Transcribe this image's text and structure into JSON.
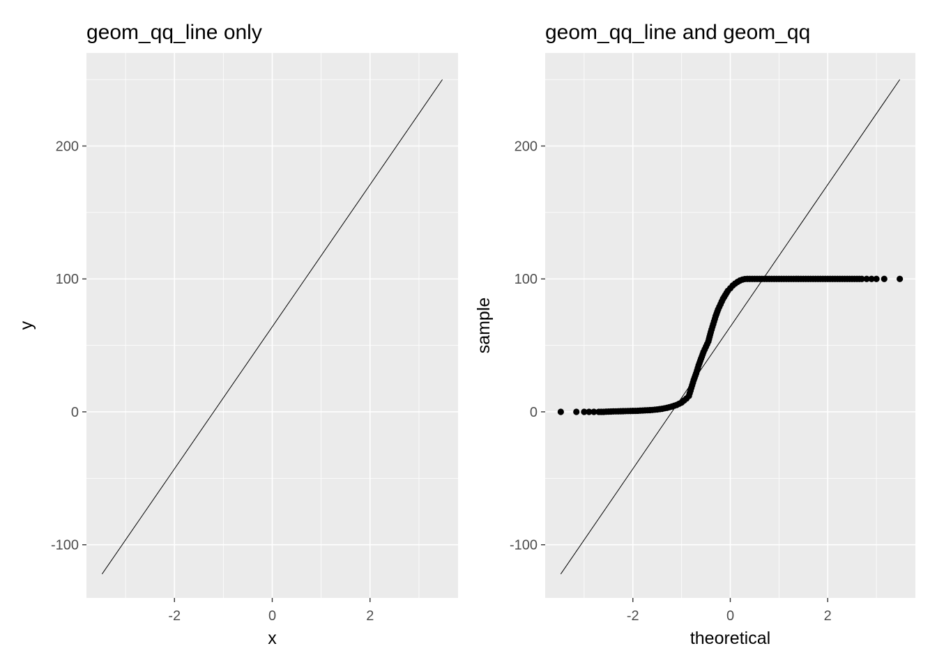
{
  "chart_data": [
    {
      "type": "line",
      "title": "geom_qq_line only",
      "xlabel": "x",
      "ylabel": "y",
      "xlim": [
        -3.8,
        3.8
      ],
      "ylim": [
        -140,
        270
      ],
      "x_ticks": [
        -2,
        0,
        2
      ],
      "x_tick_labels": [
        "-2",
        "0",
        "2"
      ],
      "y_ticks": [
        -100,
        0,
        100,
        200
      ],
      "y_tick_labels": [
        "-100",
        "0",
        "100",
        "200"
      ],
      "grid": true,
      "background": "#ebebeb",
      "grid_color": "#ffffff",
      "series": [
        {
          "kind": "line",
          "x": [
            -3.48,
            3.48
          ],
          "y": [
            -122,
            250
          ]
        }
      ]
    },
    {
      "type": "scatter",
      "title": "geom_qq_line and geom_qq",
      "xlabel": "theoretical",
      "ylabel": "sample",
      "xlim": [
        -3.8,
        3.8
      ],
      "ylim": [
        -140,
        270
      ],
      "x_ticks": [
        -2,
        0,
        2
      ],
      "x_tick_labels": [
        "-2",
        "0",
        "2"
      ],
      "y_ticks": [
        -100,
        0,
        100,
        200
      ],
      "y_tick_labels": [
        "-100",
        "0",
        "100",
        "200"
      ],
      "grid": true,
      "background": "#ebebeb",
      "grid_color": "#ffffff",
      "series": [
        {
          "kind": "line",
          "x": [
            -3.48,
            3.48
          ],
          "y": [
            -122,
            250
          ]
        },
        {
          "kind": "points",
          "x": [
            -3.48,
            -3.16,
            -3.0,
            -2.9,
            -2.8,
            -2.7,
            -2.6,
            -2.5,
            -2.4,
            -2.3,
            -2.2,
            -2.1,
            -2.0,
            -1.9,
            -1.8,
            -1.7,
            -1.6,
            -1.5,
            -1.4,
            -1.3,
            -1.2,
            -1.1,
            -1.0,
            -0.95,
            -0.9,
            -0.85,
            -0.8,
            -0.75,
            -0.7,
            -0.65,
            -0.6,
            -0.55,
            -0.5,
            -0.45,
            -0.4,
            -0.35,
            -0.3,
            -0.25,
            -0.2,
            -0.15,
            -0.1,
            -0.05,
            0.0,
            0.05,
            0.1,
            0.15,
            0.2,
            0.25,
            0.3,
            0.35,
            0.4,
            0.45,
            0.5,
            0.6,
            0.7,
            0.8,
            0.9,
            1.0,
            1.2,
            1.4,
            1.6,
            1.8,
            2.0,
            2.2,
            2.4,
            2.6,
            2.7,
            2.8,
            2.9,
            3.0,
            3.16,
            3.48
          ],
          "y": [
            0,
            0,
            0,
            0,
            0,
            0,
            0,
            0.2,
            0.3,
            0.4,
            0.5,
            0.6,
            0.7,
            0.8,
            1.0,
            1.2,
            1.4,
            1.8,
            2.3,
            3.0,
            4.0,
            5.2,
            7.0,
            8.5,
            10,
            12,
            18,
            24,
            29,
            35,
            40,
            45,
            49,
            53,
            60,
            66,
            72,
            77,
            81,
            85,
            88,
            91,
            93,
            95,
            96.5,
            97.8,
            98.8,
            99.5,
            99.9,
            100,
            100,
            100,
            100,
            100,
            100,
            100,
            100,
            100,
            100,
            100,
            100,
            100,
            100,
            100,
            100,
            100,
            100,
            100,
            100,
            100,
            100,
            100
          ]
        }
      ]
    }
  ]
}
